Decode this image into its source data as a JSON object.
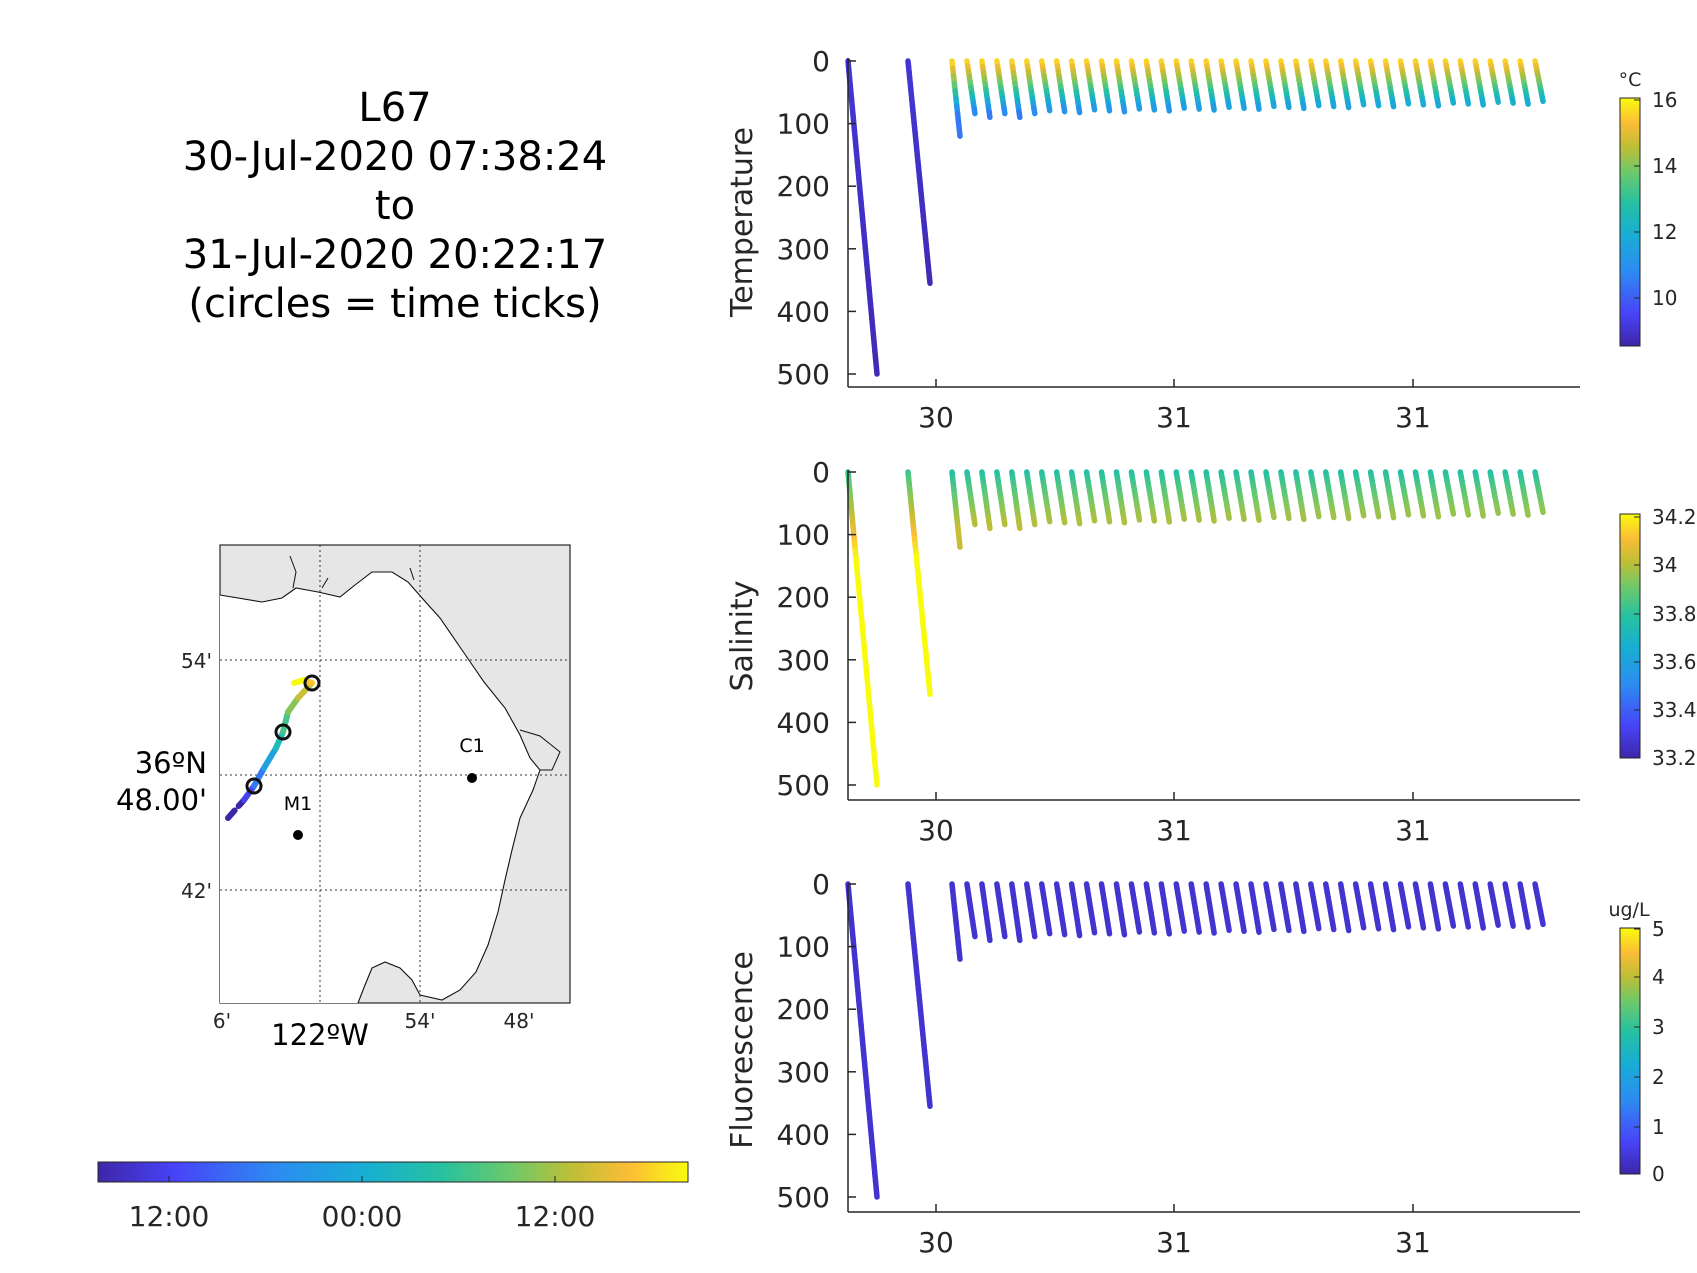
{
  "title": {
    "glider": "L67",
    "start": "30-Jul-2020 07:38:24",
    "to": "to",
    "end": "31-Jul-2020 20:22:17",
    "note": "(circles = time ticks)"
  },
  "palette": [
    "#3e26a8",
    "#4743f8",
    "#2d8bf2",
    "#17aed4",
    "#26c1a1",
    "#6dc96a",
    "#bcbe37",
    "#fbbd36",
    "#f9fb0e"
  ],
  "chart_data": [
    {
      "type": "scatter",
      "name": "temperature-section",
      "ylabel": "Temperature",
      "y_reversed": true,
      "ylim": [
        0,
        520
      ],
      "yticks": [
        0,
        100,
        200,
        300,
        400,
        500
      ],
      "xtick_labels": [
        "30",
        "31",
        "31"
      ],
      "colorbar": {
        "unit": "°C",
        "ticks": [
          "16",
          "14",
          "12",
          "10"
        ],
        "range": [
          8.5,
          16
        ]
      },
      "profiles": [
        {
          "start_depth": 0,
          "max_depth": 500
        },
        {
          "start_depth": 0,
          "max_depth": 355
        },
        {
          "start_depth": 0,
          "max_depth": 120
        },
        {
          "start_depth": 0,
          "max_depth": 75
        },
        {
          "start_depth": 0,
          "max_depth": 90
        },
        {
          "start_depth": 0,
          "max_depth": 70
        },
        {
          "start_depth": 0,
          "max_depth": 75
        },
        {
          "start_depth": 0,
          "max_depth": 80
        },
        {
          "start_depth": 0,
          "max_depth": 60
        }
      ],
      "profile_count": "many"
    },
    {
      "type": "scatter",
      "name": "salinity-section",
      "ylabel": "Salinity",
      "y_reversed": true,
      "ylim": [
        0,
        520
      ],
      "yticks": [
        0,
        100,
        200,
        300,
        400,
        500
      ],
      "xtick_labels": [
        "30",
        "31",
        "31"
      ],
      "colorbar": {
        "unit": "",
        "ticks": [
          "34.2",
          "34",
          "33.8",
          "33.6",
          "33.4",
          "33.2"
        ],
        "range": [
          33.2,
          34.2
        ]
      }
    },
    {
      "type": "scatter",
      "name": "fluorescence-section",
      "ylabel": "Fluorescence",
      "y_reversed": true,
      "ylim": [
        0,
        520
      ],
      "yticks": [
        0,
        100,
        200,
        300,
        400,
        500
      ],
      "xtick_labels": [
        "30",
        "31",
        "31"
      ],
      "colorbar": {
        "unit": "ug/L",
        "ticks": [
          "5",
          "4",
          "3",
          "2",
          "1",
          "0"
        ],
        "range": [
          0,
          5
        ]
      }
    },
    {
      "type": "map",
      "name": "track-map",
      "lat_ticks": [
        "54'",
        "42'"
      ],
      "lat_label_1": "36ºN",
      "lat_label_2": "48.00'",
      "lon_ticks": [
        "6'",
        "54'",
        "48'"
      ],
      "lon_label": "122ºW",
      "stations": [
        {
          "label": "M1"
        },
        {
          "label": "C1"
        }
      ],
      "time_colorbar_ticks": [
        "12:00",
        "00:00",
        "12:00"
      ]
    }
  ]
}
